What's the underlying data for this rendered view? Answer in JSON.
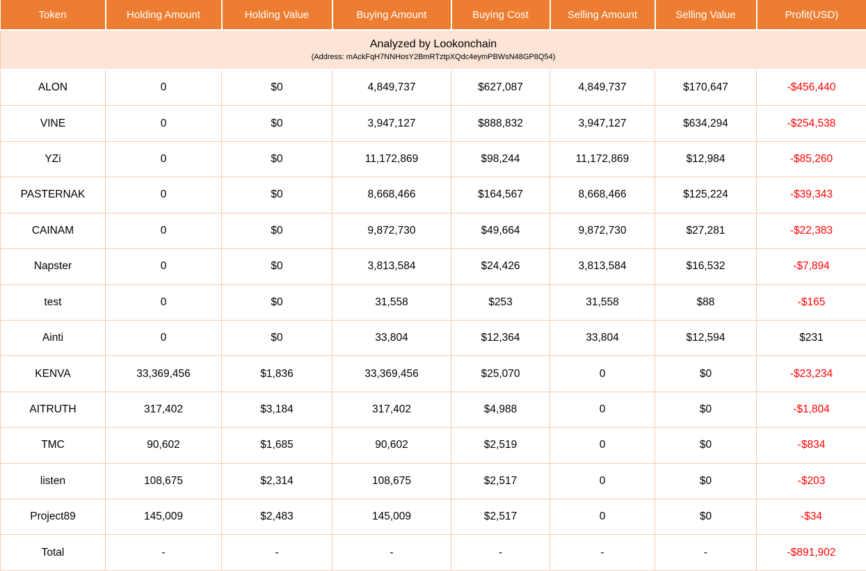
{
  "chart_data": {
    "type": "table",
    "title": "Analyzed by Lookonchain",
    "subtitle": "(Address: mAckFqH7NNHosY2BmRTztpXQdc4eymPBWsN48GP8Q54)",
    "columns": [
      "Token",
      "Holding Amount",
      "Holding Value",
      "Buying Amount",
      "Buying Cost",
      "Selling Amount",
      "Selling Value",
      "Profit(USD)"
    ],
    "rows": [
      [
        "ALON",
        "0",
        "$0",
        "4,849,737",
        "$627,087",
        "4,849,737",
        "$170,647",
        "-$456,440"
      ],
      [
        "VINE",
        "0",
        "$0",
        "3,947,127",
        "$888,832",
        "3,947,127",
        "$634,294",
        "-$254,538"
      ],
      [
        "YZi",
        "0",
        "$0",
        "11,172,869",
        "$98,244",
        "11,172,869",
        "$12,984",
        "-$85,260"
      ],
      [
        "PASTERNAK",
        "0",
        "$0",
        "8,668,466",
        "$164,567",
        "8,668,466",
        "$125,224",
        "-$39,343"
      ],
      [
        "CAINAM",
        "0",
        "$0",
        "9,872,730",
        "$49,664",
        "9,872,730",
        "$27,281",
        "-$22,383"
      ],
      [
        "Napster",
        "0",
        "$0",
        "3,813,584",
        "$24,426",
        "3,813,584",
        "$16,532",
        "-$7,894"
      ],
      [
        "test",
        "0",
        "$0",
        "31,558",
        "$253",
        "31,558",
        "$88",
        "-$165"
      ],
      [
        "Ainti",
        "0",
        "$0",
        "33,804",
        "$12,364",
        "33,804",
        "$12,594",
        "$231"
      ],
      [
        "KENVA",
        "33,369,456",
        "$1,836",
        "33,369,456",
        "$25,070",
        "0",
        "$0",
        "-$23,234"
      ],
      [
        "AITRUTH",
        "317,402",
        "$3,184",
        "317,402",
        "$4,988",
        "0",
        "$0",
        "-$1,804"
      ],
      [
        "TMC",
        "90,602",
        "$1,685",
        "90,602",
        "$2,519",
        "0",
        "$0",
        "-$834"
      ],
      [
        "listen",
        "108,675",
        "$2,314",
        "108,675",
        "$2,517",
        "0",
        "$0",
        "-$203"
      ],
      [
        "Project89",
        "145,009",
        "$2,483",
        "145,009",
        "$2,517",
        "0",
        "$0",
        "-$34"
      ],
      [
        "Total",
        "-",
        "-",
        "-",
        "-",
        "-",
        "-",
        "-$891,902"
      ]
    ],
    "layout_hints": {
      "profit_column_index": 7,
      "negative_profit_prefix": "-"
    }
  },
  "colors": {
    "header_bg": "#ED7D31",
    "subheader_bg": "#FCE4D6",
    "grid": "#F8CBAD",
    "negative_profit": "#FF0000",
    "header_text": "#FFFFFF",
    "body_text": "#000000"
  }
}
